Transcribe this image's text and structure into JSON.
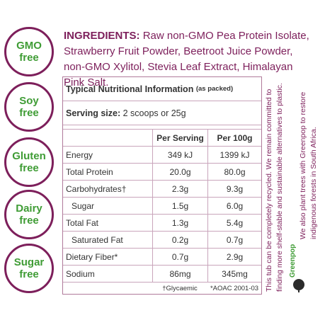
{
  "badges": [
    {
      "line1": "GMO",
      "line2": "free"
    },
    {
      "line1": "Soy",
      "line2": "free"
    },
    {
      "line1": "Gluten",
      "line2": "free"
    },
    {
      "line1": "Dairy",
      "line2": "free"
    },
    {
      "line1": "Sugar",
      "line2": "free"
    }
  ],
  "ingredients": {
    "heading": "INGREDIENTS:",
    "text": "Raw non-GMO Pea Protein Isolate, Strawberry Fruit Powder, Beetroot Juice Powder, non-GMO Xylitol, Stevia Leaf Extract, Himalayan Pink Salt."
  },
  "nutrition": {
    "title": "Typical Nutritional Information",
    "title_note": "(as packed)",
    "serving_label": "Serving size:",
    "serving_value": "2 scoops or 25g",
    "columns": [
      "Per Serving",
      "Per 100g"
    ],
    "rows": [
      [
        "Energy",
        "349 kJ",
        "1399 kJ"
      ],
      [
        "Total Protein",
        "20.0g",
        "80.0g"
      ],
      [
        "Carbohydrates†",
        "2.3g",
        "9.3g"
      ],
      [
        "Sugar",
        "1.5g",
        "6.0g"
      ],
      [
        "Total Fat",
        "1.3g",
        "5.4g"
      ],
      [
        "Saturated Fat",
        "0.2g",
        "0.7g"
      ],
      [
        "Dietary Fiber*",
        "0.7g",
        "2.9g"
      ],
      [
        "Sodium",
        "86mg",
        "345mg"
      ]
    ],
    "footnotes": [
      "†Glycaemic",
      "*AOAC 2001-03"
    ]
  },
  "side_text": {
    "recycle": [
      "This tub can be completely recycled. We remain committed to",
      "finding more shelf-stable and sustainable alternatives to plastic."
    ],
    "trees": [
      "We also plant trees with Greenpop to restore",
      "indigenous forests in South Africa."
    ],
    "logo": "Greenpop"
  }
}
